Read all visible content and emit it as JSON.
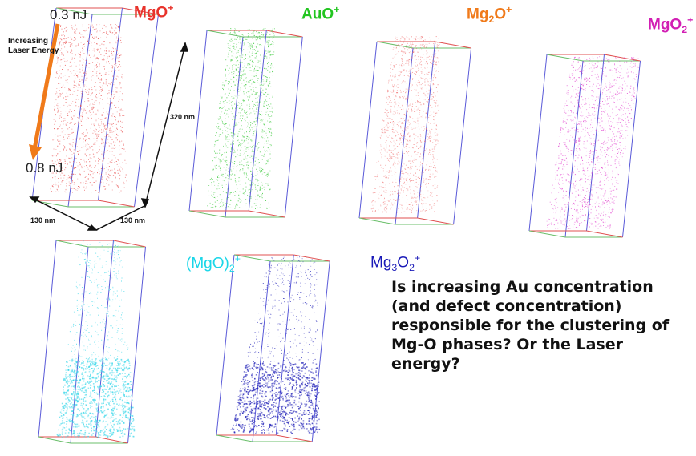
{
  "panels": [
    {
      "label": "MgO",
      "sup": "+",
      "sub": "",
      "color": "#e8332b",
      "dot": "#e74a4a"
    },
    {
      "label": "AuO",
      "sup": "+",
      "sub": "",
      "color": "#22c520",
      "dot": "#33c733"
    },
    {
      "label": "Mg",
      "sub": "2",
      "after": "O",
      "sup": "+",
      "color": "#f07a1a",
      "dot": "#f07a7a"
    },
    {
      "label": "MgO",
      "sub": "2",
      "sup": "+",
      "color": "#d21fb4",
      "dot": "#e03ccd"
    },
    {
      "label": "(MgO)",
      "sub": "2",
      "sup": "+",
      "color": "#1ad6e8",
      "dot": "#3ed8ea"
    },
    {
      "label": "Mg",
      "sub": "3",
      "after": "O",
      "sub2": "2",
      "sup": "+",
      "color": "#1a1ab8",
      "dot": "#2222b8"
    }
  ],
  "energy": {
    "top": "0.3 nJ",
    "bottom": "0.8 nJ",
    "arrow_label": "Increasing Laser Energy",
    "arrow_color": "#f07a1a"
  },
  "dims": {
    "height": "320 nm",
    "width_a": "130 nm",
    "width_b": "130 nm"
  },
  "question": "Is increasing Au concentration (and defect concentration) responsible for the clustering of Mg-O phases? Or the Laser energy?"
}
